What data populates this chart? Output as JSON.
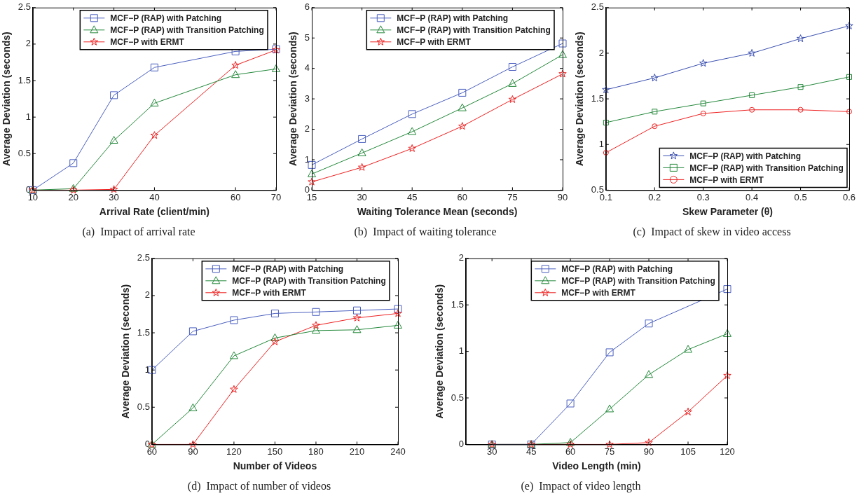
{
  "chart_data": [
    {
      "type": "line",
      "title": "(a)  Impact of arrival rate",
      "xlabel": "Arrival Rate (client/min)",
      "ylabel": "Average Deviation (seconds)",
      "x": [
        10,
        20,
        30,
        40,
        60,
        70
      ],
      "xlim": [
        10,
        70
      ],
      "xticks": [
        10,
        20,
        30,
        40,
        60,
        70
      ],
      "ylim": [
        0,
        2.5
      ],
      "yticks": [
        0,
        0.5,
        1,
        1.5,
        2,
        2.5
      ],
      "legend": "top right",
      "series": [
        {
          "name": "MCF−P (RAP) with Patching",
          "color": "#4a5fbf",
          "marker": "square",
          "values": [
            0,
            0.37,
            1.3,
            1.68,
            1.9,
            1.93
          ]
        },
        {
          "name": "MCF−P (RAP) with Transition Patching",
          "color": "#23883a",
          "marker": "triangle",
          "values": [
            0,
            0.02,
            0.68,
            1.19,
            1.58,
            1.66
          ]
        },
        {
          "name": "MCF−P with ERMT",
          "color": "#ee2020",
          "marker": "star",
          "values": [
            0,
            0,
            0.01,
            0.75,
            1.71,
            1.92
          ]
        }
      ]
    },
    {
      "type": "line",
      "title": "(b)  Impact of waiting tolerance",
      "xlabel": "Waiting Tolerance Mean (seconds)",
      "ylabel": "Average Deviation (seconds)",
      "x": [
        15,
        30,
        45,
        60,
        75,
        90
      ],
      "xlim": [
        15,
        90
      ],
      "xticks": [
        15,
        30,
        45,
        60,
        75,
        90
      ],
      "ylim": [
        0,
        6
      ],
      "yticks": [
        0,
        1,
        2,
        3,
        4,
        5,
        6
      ],
      "legend": "top right",
      "series": [
        {
          "name": "MCF−P (RAP) with Patching",
          "color": "#4a5fbf",
          "marker": "square",
          "values": [
            0.83,
            1.68,
            2.5,
            3.2,
            4.05,
            4.82
          ]
        },
        {
          "name": "MCF−P (RAP) with Transition Patching",
          "color": "#23883a",
          "marker": "triangle",
          "values": [
            0.53,
            1.22,
            1.92,
            2.7,
            3.5,
            4.45
          ]
        },
        {
          "name": "MCF−P with ERMT",
          "color": "#ee2020",
          "marker": "star",
          "values": [
            0.27,
            0.75,
            1.37,
            2.1,
            2.98,
            3.82
          ]
        }
      ]
    },
    {
      "type": "line",
      "title": "(c)  Impact of skew in video access",
      "xlabel": "Skew Parameter (θ)",
      "ylabel": "Average Deviation (seconds)",
      "x": [
        0.1,
        0.2,
        0.3,
        0.4,
        0.5,
        0.6
      ],
      "xlim": [
        0.1,
        0.6
      ],
      "xticks": [
        0.1,
        0.2,
        0.3,
        0.4,
        0.5,
        0.6
      ],
      "ylim": [
        0.5,
        2.5
      ],
      "yticks": [
        0.5,
        1,
        1.5,
        2,
        2.5
      ],
      "legend": "bottom right",
      "series": [
        {
          "name": "MCF−P (RAP) with Patching",
          "color": "#3a4fb0",
          "marker": "star",
          "values": [
            1.6,
            1.73,
            1.89,
            2.0,
            2.16,
            2.3
          ]
        },
        {
          "name": "MCF−P (RAP) with Transition Patching",
          "color": "#23883a",
          "marker": "square",
          "values": [
            1.24,
            1.36,
            1.45,
            1.54,
            1.63,
            1.74
          ]
        },
        {
          "name": "MCF−P with ERMT",
          "color": "#ee2020",
          "marker": "circle",
          "values": [
            0.91,
            1.2,
            1.34,
            1.38,
            1.38,
            1.36
          ]
        }
      ]
    },
    {
      "type": "line",
      "title": "(d)  Impact of number of videos",
      "xlabel": "Number of Videos",
      "ylabel": "Average Deviation (seconds)",
      "x": [
        60,
        90,
        120,
        150,
        180,
        210,
        240
      ],
      "xlim": [
        60,
        240
      ],
      "xticks": [
        60,
        90,
        120,
        150,
        180,
        210,
        240
      ],
      "ylim": [
        0,
        2.5
      ],
      "yticks": [
        0,
        0.5,
        1,
        1.5,
        2,
        2.5
      ],
      "legend": "top right",
      "series": [
        {
          "name": "MCF−P (RAP) with Patching",
          "color": "#4a5fbf",
          "marker": "square",
          "values": [
            1.0,
            1.52,
            1.67,
            1.76,
            1.78,
            1.8,
            1.82
          ]
        },
        {
          "name": "MCF−P (RAP) with Transition Patching",
          "color": "#23883a",
          "marker": "triangle",
          "values": [
            0,
            0.49,
            1.19,
            1.43,
            1.53,
            1.54,
            1.6
          ]
        },
        {
          "name": "MCF−P with ERMT",
          "color": "#ee2020",
          "marker": "star",
          "values": [
            0,
            0,
            0.74,
            1.38,
            1.6,
            1.7,
            1.76
          ]
        }
      ]
    },
    {
      "type": "line",
      "title": "(e)  Impact of video length",
      "xlabel": "Video Length (min)",
      "ylabel": "Average Deviation (seconds)",
      "x": [
        30,
        45,
        60,
        75,
        90,
        105,
        120
      ],
      "xlim": [
        20,
        120
      ],
      "xticks": [
        30,
        45,
        60,
        75,
        90,
        105,
        120
      ],
      "ylim": [
        0,
        2
      ],
      "yticks": [
        0,
        0.5,
        1,
        1.5,
        2
      ],
      "legend": "top right",
      "series": [
        {
          "name": "MCF−P (RAP) with Patching",
          "color": "#4a5fbf",
          "marker": "square",
          "values": [
            0,
            0,
            0.44,
            0.99,
            1.3,
            null,
            1.67
          ]
        },
        {
          "name": "MCF−P (RAP) with Transition Patching",
          "color": "#23883a",
          "marker": "triangle",
          "values": [
            0,
            0,
            0.02,
            0.38,
            0.75,
            1.02,
            1.19
          ]
        },
        {
          "name": "MCF−P with ERMT",
          "color": "#ee2020",
          "marker": "star",
          "values": [
            0,
            0,
            0,
            0,
            0.02,
            0.35,
            0.74
          ]
        }
      ]
    }
  ]
}
